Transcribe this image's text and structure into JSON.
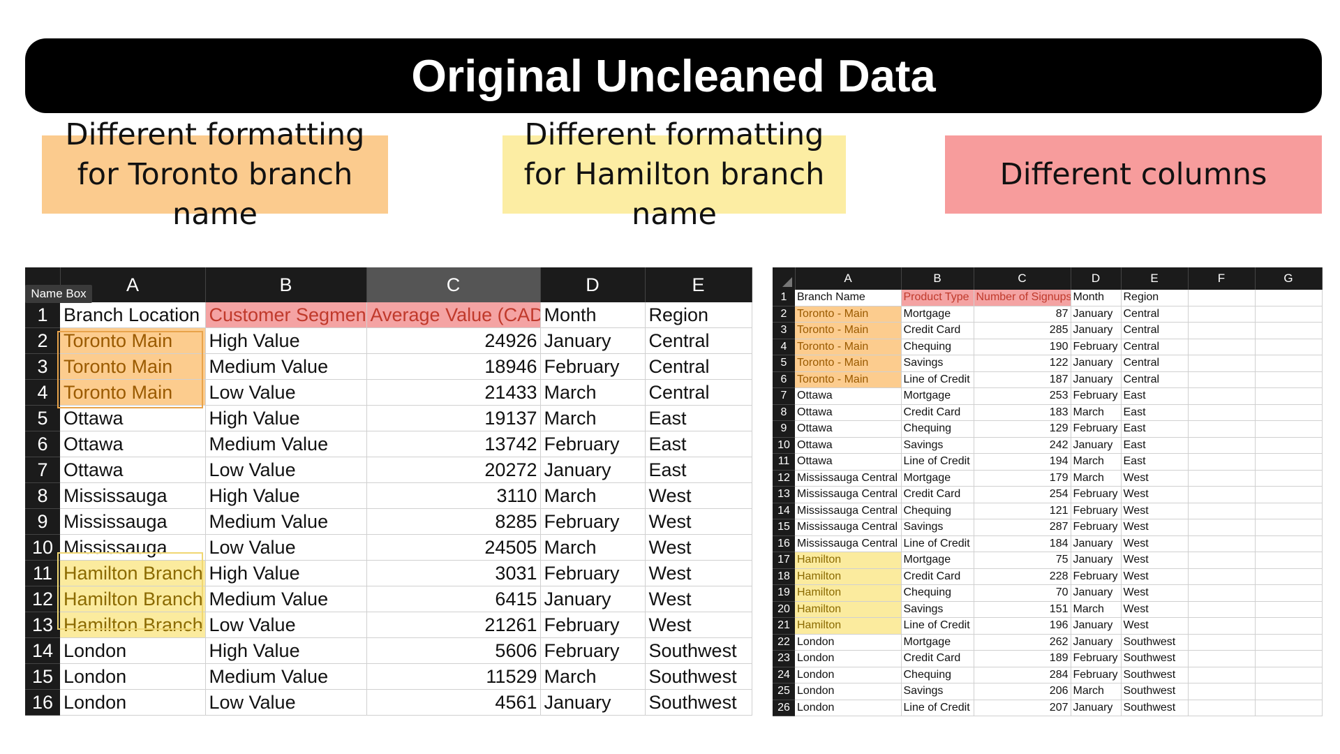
{
  "banner": {
    "title": "Original Uncleaned Data"
  },
  "callouts": {
    "toronto": "Different formatting for Toronto branch name",
    "hamilton": "Different formatting for Hamilton branch name",
    "columns": "Different columns"
  },
  "left_sheet": {
    "name_box": "Name Box",
    "columns": [
      "A",
      "B",
      "C",
      "D",
      "E"
    ],
    "header_row": [
      "Branch Location",
      "Customer Segment",
      "Average Value (CAD)",
      "Month",
      "Region"
    ],
    "rows": [
      [
        "Toronto Main",
        "High Value",
        "24926",
        "January",
        "Central"
      ],
      [
        "Toronto Main",
        "Medium Value",
        "18946",
        "February",
        "Central"
      ],
      [
        "Toronto Main",
        "Low Value",
        "21433",
        "March",
        "Central"
      ],
      [
        "Ottawa",
        "High Value",
        "19137",
        "March",
        "East"
      ],
      [
        "Ottawa",
        "Medium Value",
        "13742",
        "February",
        "East"
      ],
      [
        "Ottawa",
        "Low Value",
        "20272",
        "January",
        "East"
      ],
      [
        "Mississauga",
        "High Value",
        "3110",
        "March",
        "West"
      ],
      [
        "Mississauga",
        "Medium Value",
        "8285",
        "February",
        "West"
      ],
      [
        "Mississauga",
        "Low Value",
        "24505",
        "March",
        "West"
      ],
      [
        "Hamilton Branch",
        "High Value",
        "3031",
        "February",
        "West"
      ],
      [
        "Hamilton Branch",
        "Medium Value",
        "6415",
        "January",
        "West"
      ],
      [
        "Hamilton Branch",
        "Low Value",
        "21261",
        "February",
        "West"
      ],
      [
        "London",
        "High Value",
        "5606",
        "February",
        "Southwest"
      ],
      [
        "London",
        "Medium Value",
        "11529",
        "March",
        "Southwest"
      ],
      [
        "London",
        "Low Value",
        "4561",
        "January",
        "Southwest"
      ]
    ]
  },
  "right_sheet": {
    "columns": [
      "A",
      "B",
      "C",
      "D",
      "E",
      "F",
      "G"
    ],
    "header_row": [
      "Branch Name",
      "Product Type",
      "Number of Signups",
      "Month",
      "Region",
      "",
      ""
    ],
    "rows": [
      [
        "Toronto - Main",
        "Mortgage",
        "87",
        "January",
        "Central"
      ],
      [
        "Toronto - Main",
        "Credit Card",
        "285",
        "January",
        "Central"
      ],
      [
        "Toronto - Main",
        "Chequing",
        "190",
        "February",
        "Central"
      ],
      [
        "Toronto - Main",
        "Savings",
        "122",
        "January",
        "Central"
      ],
      [
        "Toronto - Main",
        "Line of Credit",
        "187",
        "January",
        "Central"
      ],
      [
        "Ottawa",
        "Mortgage",
        "253",
        "February",
        "East"
      ],
      [
        "Ottawa",
        "Credit Card",
        "183",
        "March",
        "East"
      ],
      [
        "Ottawa",
        "Chequing",
        "129",
        "February",
        "East"
      ],
      [
        "Ottawa",
        "Savings",
        "242",
        "January",
        "East"
      ],
      [
        "Ottawa",
        "Line of Credit",
        "194",
        "March",
        "East"
      ],
      [
        "Mississauga Central",
        "Mortgage",
        "179",
        "March",
        "West"
      ],
      [
        "Mississauga Central",
        "Credit Card",
        "254",
        "February",
        "West"
      ],
      [
        "Mississauga Central",
        "Chequing",
        "121",
        "February",
        "West"
      ],
      [
        "Mississauga Central",
        "Savings",
        "287",
        "February",
        "West"
      ],
      [
        "Mississauga Central",
        "Line of Credit",
        "184",
        "January",
        "West"
      ],
      [
        "Hamilton",
        "Mortgage",
        "75",
        "January",
        "West"
      ],
      [
        "Hamilton",
        "Credit Card",
        "228",
        "February",
        "West"
      ],
      [
        "Hamilton",
        "Chequing",
        "70",
        "January",
        "West"
      ],
      [
        "Hamilton",
        "Savings",
        "151",
        "March",
        "West"
      ],
      [
        "Hamilton",
        "Line of Credit",
        "196",
        "January",
        "West"
      ],
      [
        "London",
        "Mortgage",
        "262",
        "January",
        "Southwest"
      ],
      [
        "London",
        "Credit Card",
        "189",
        "February",
        "Southwest"
      ],
      [
        "London",
        "Chequing",
        "284",
        "February",
        "Southwest"
      ],
      [
        "London",
        "Savings",
        "206",
        "March",
        "Southwest"
      ],
      [
        "London",
        "Line of Credit",
        "207",
        "January",
        "Southwest"
      ]
    ]
  },
  "colors": {
    "toronto_highlight": "#FCCC8E",
    "hamilton_highlight": "#FBEB9E",
    "column_highlight": "#F4A3A3",
    "banner": "#000000"
  }
}
